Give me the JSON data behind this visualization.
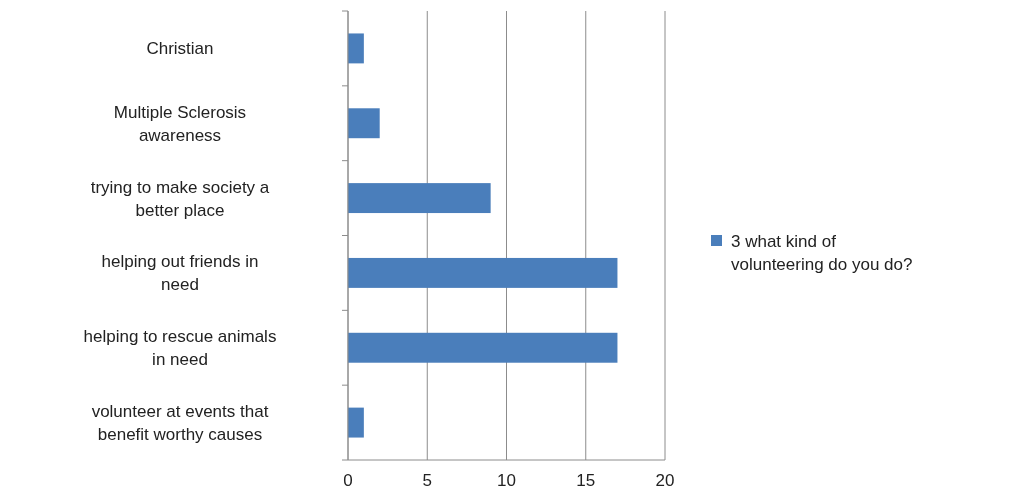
{
  "chart_data": {
    "type": "bar",
    "orientation": "horizontal",
    "categories": [
      "Christian",
      "Multiple Sclerosis awareness",
      "trying to make society a better place",
      "helping out friends in need",
      "helping to rescue animals in need",
      "volunteer at events that benefit worthy causes"
    ],
    "series": [
      {
        "name": "3 what kind of volunteering do you do?",
        "color": "#4a7ebb",
        "values": [
          1,
          2,
          9,
          17,
          17,
          1
        ]
      }
    ],
    "xlim": [
      0,
      20
    ],
    "xticks": [
      0,
      5,
      10,
      15,
      20
    ],
    "grid": "x",
    "legend": "right"
  }
}
